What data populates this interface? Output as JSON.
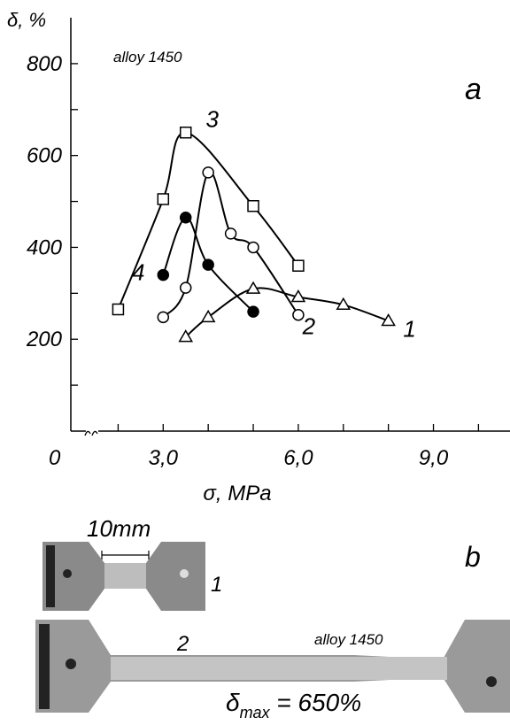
{
  "chart_data": {
    "type": "line",
    "title": "alloy 1450",
    "panel_label": "a",
    "y_label": "δ, %",
    "x_label": "σ, MPa",
    "origin_label": "0",
    "xlim": [
      0.95,
      10.7
    ],
    "ylim": [
      0,
      900
    ],
    "xticks": [
      {
        "value": 3,
        "label": "3,0"
      },
      {
        "value": 6,
        "label": "6,0"
      },
      {
        "value": 9,
        "label": "9,0"
      }
    ],
    "minor_xticks": [
      2,
      3,
      4,
      5,
      6,
      7,
      8,
      9,
      10
    ],
    "yticks": [
      200,
      400,
      600,
      800
    ],
    "minor_yticks": [
      100,
      200,
      300,
      400,
      500,
      600,
      700,
      800
    ],
    "series": [
      {
        "name": "1",
        "color": "#000000",
        "marker": "triangle",
        "filled": false,
        "x": [
          3.5,
          4,
          5,
          6,
          7,
          8
        ],
        "values": [
          205,
          248,
          310,
          292,
          275,
          240
        ]
      },
      {
        "name": "2",
        "color": "#000000",
        "marker": "circle",
        "filled": false,
        "x": [
          3,
          3.5,
          4,
          4.5,
          5,
          6
        ],
        "values": [
          248,
          312,
          563,
          430,
          400,
          253
        ]
      },
      {
        "name": "3",
        "color": "#000000",
        "marker": "square",
        "filled": false,
        "x": [
          2,
          3,
          3.5,
          5,
          6
        ],
        "values": [
          265,
          505,
          650,
          490,
          360
        ]
      },
      {
        "name": "4",
        "color": "#000000",
        "marker": "circle",
        "filled": true,
        "x": [
          3,
          3.5,
          4,
          5
        ],
        "values": [
          340,
          465,
          362,
          260
        ]
      }
    ]
  },
  "photo": {
    "panel_label": "b",
    "scale_label": "10mm",
    "specimen_1": "1",
    "specimen_2": "2",
    "alloy": "alloy 1450",
    "caption": {
      "symbol": "δ",
      "subscript": "max",
      "rest": " = 650%"
    }
  }
}
